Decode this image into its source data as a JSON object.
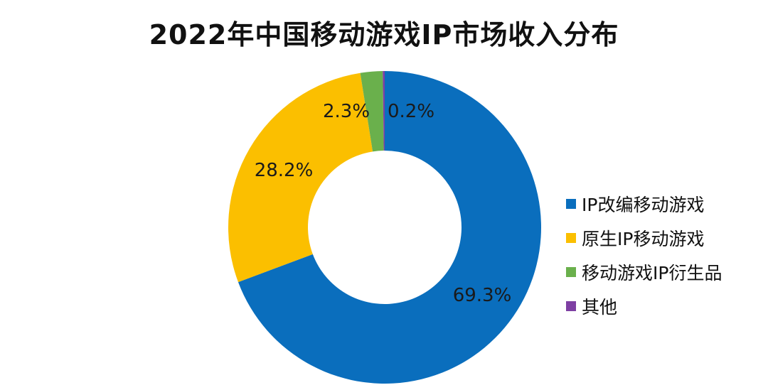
{
  "chart_data": {
    "type": "donut",
    "title": "2022年中国移动游戏IP市场收入分布",
    "legend_position": "right",
    "series": [
      {
        "name": "IP改编移动游戏",
        "value": 69.3,
        "label": "69.3%",
        "color": "#0a6ebd"
      },
      {
        "name": "原生IP移动游戏",
        "value": 28.2,
        "label": "28.2%",
        "color": "#fbbf00"
      },
      {
        "name": "移动游戏IP衍生品",
        "value": 2.3,
        "label": "2.3%",
        "color": "#6ab04c"
      },
      {
        "name": "其他",
        "value": 0.2,
        "label": "0.2%",
        "color": "#7e3fa3"
      }
    ]
  }
}
